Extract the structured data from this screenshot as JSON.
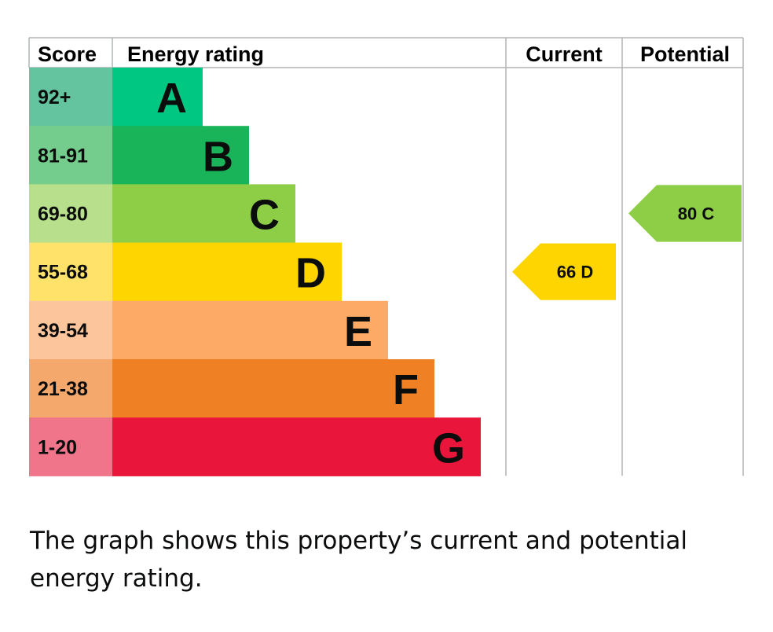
{
  "chart_data": {
    "type": "bar",
    "headers": {
      "score": "Score",
      "rating": "Energy rating",
      "current": "Current",
      "potential": "Potential"
    },
    "bands": [
      {
        "letter": "A",
        "score": "92+",
        "color": "#008054",
        "light": "#64c49f",
        "bar": "#00c781"
      },
      {
        "letter": "B",
        "score": "81-91",
        "color": "#19b459",
        "light": "#75cd8d",
        "bar": "#19b459"
      },
      {
        "letter": "C",
        "score": "69-80",
        "color": "#8dce46",
        "light": "#b8e08c",
        "bar": "#8dce46"
      },
      {
        "letter": "D",
        "score": "55-68",
        "color": "#ffd500",
        "light": "#ffe26a",
        "bar": "#ffd500"
      },
      {
        "letter": "E",
        "score": "39-54",
        "color": "#fcaa65",
        "light": "#fdc59b",
        "bar": "#fcaa65"
      },
      {
        "letter": "F",
        "score": "21-38",
        "color": "#ef8023",
        "light": "#f4a86b",
        "bar": "#ef8023"
      },
      {
        "letter": "G",
        "score": "1-20",
        "color": "#e9153b",
        "light": "#f0758a",
        "bar": "#e9153b"
      }
    ],
    "current": {
      "value": 66,
      "letter": "D",
      "label": "66  D"
    },
    "potential": {
      "value": 80,
      "letter": "C",
      "label": "80  C"
    }
  },
  "caption": "The graph shows this property’s current and potential energy rating."
}
